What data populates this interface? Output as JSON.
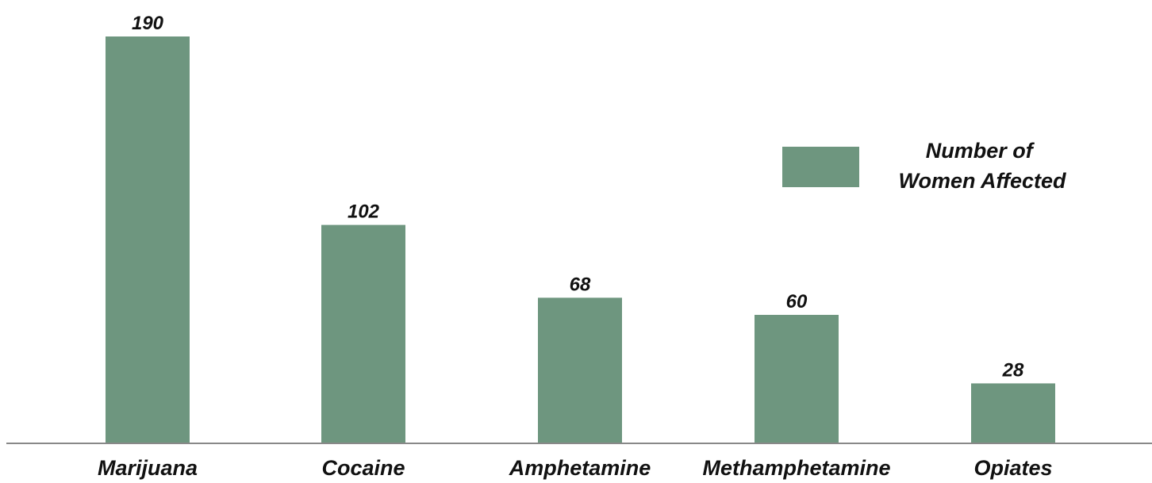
{
  "chart_data": {
    "type": "bar",
    "categories": [
      "Marijuana",
      "Cocaine",
      "Amphetamine",
      "Methamphetamine",
      "Opiates"
    ],
    "series": [
      {
        "name": "Number of Women Affected",
        "values": [
          190,
          102,
          68,
          60,
          28
        ]
      }
    ],
    "legend": {
      "lines": [
        "Number of",
        "Women Affected"
      ],
      "position": "right"
    },
    "ylim": [
      0,
      190
    ],
    "grid": false,
    "data_labels": true,
    "colors": {
      "bar": "#6e967f",
      "axis": "#888888",
      "text": "#111111"
    }
  }
}
